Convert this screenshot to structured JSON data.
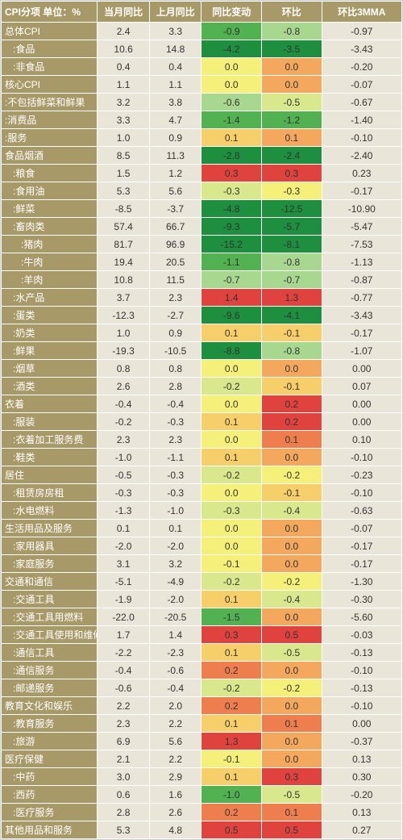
{
  "table": {
    "headers": {
      "cat": "CPI分项      单位：%",
      "c1": "当月同比",
      "c2": "上月同比",
      "c3": "同比变动",
      "c4": "环比",
      "c5": "环比3MMA"
    },
    "heat_palette": {
      "deep_green": "#1e8f3e",
      "green": "#52b151",
      "light_green": "#a8d88f",
      "yellow_green": "#d9e88c",
      "yellow": "#f5f07a",
      "orange_yellow": "#f7cf6a",
      "orange": "#f4a85d",
      "deep_orange": "#ee7e4e",
      "red": "#e0433e"
    },
    "rows": [
      {
        "label": "总体CPI",
        "indent": 0,
        "c1": "2.4",
        "c2": "3.3",
        "c3": "-0.9",
        "c3c": "green",
        "c4": "-0.8",
        "c4c": "light_green",
        "c5": "-0.97"
      },
      {
        "label": ":食品",
        "indent": 1,
        "c1": "10.6",
        "c2": "14.8",
        "c3": "-4.2",
        "c3c": "deep_green",
        "c4": "-3.5",
        "c4c": "deep_green",
        "c5": "-3.43"
      },
      {
        "label": ":非食品",
        "indent": 1,
        "c1": "0.4",
        "c2": "0.4",
        "c3": "0.0",
        "c3c": "yellow",
        "c4": "0.0",
        "c4c": "orange",
        "c5": "-0.20"
      },
      {
        "label": "核心CPI",
        "indent": 0,
        "c1": "1.1",
        "c2": "1.1",
        "c3": "0.0",
        "c3c": "yellow",
        "c4": "0.0",
        "c4c": "orange",
        "c5": "-0.07"
      },
      {
        "label": ":不包括鲜菜和鲜果",
        "indent": 0,
        "c1": "3.2",
        "c2": "3.8",
        "c3": "-0.6",
        "c3c": "light_green",
        "c4": "-0.5",
        "c4c": "yellow_green",
        "c5": "-0.67"
      },
      {
        "label": ":消费品",
        "indent": 0,
        "c1": "3.3",
        "c2": "4.7",
        "c3": "-1.4",
        "c3c": "green",
        "c4": "-1.2",
        "c4c": "green",
        "c5": "-1.40"
      },
      {
        "label": ":服务",
        "indent": 0,
        "c1": "1.0",
        "c2": "0.9",
        "c3": "0.1",
        "c3c": "orange_yellow",
        "c4": "0.1",
        "c4c": "orange",
        "c5": "-0.10"
      },
      {
        "label": "食品烟酒",
        "indent": 0,
        "c1": "8.5",
        "c2": "11.3",
        "c3": "-2.8",
        "c3c": "deep_green",
        "c4": "-2.4",
        "c4c": "deep_green",
        "c5": "-2.40"
      },
      {
        "label": ":粮食",
        "indent": 1,
        "c1": "1.5",
        "c2": "1.2",
        "c3": "0.3",
        "c3c": "red",
        "c4": "0.3",
        "c4c": "red",
        "c5": "0.23"
      },
      {
        "label": ":食用油",
        "indent": 1,
        "c1": "5.3",
        "c2": "5.6",
        "c3": "-0.3",
        "c3c": "yellow_green",
        "c4": "-0.3",
        "c4c": "yellow",
        "c5": "-0.17"
      },
      {
        "label": ":鲜菜",
        "indent": 1,
        "c1": "-8.5",
        "c2": "-3.7",
        "c3": "-4.8",
        "c3c": "deep_green",
        "c4": "-12.5",
        "c4c": "deep_green",
        "c5": "-10.90"
      },
      {
        "label": ":畜肉类",
        "indent": 1,
        "c1": "57.4",
        "c2": "66.7",
        "c3": "-9.3",
        "c3c": "deep_green",
        "c4": "-5.7",
        "c4c": "deep_green",
        "c5": "-5.47"
      },
      {
        "label": ":猪肉",
        "indent": 2,
        "c1": "81.7",
        "c2": "96.9",
        "c3": "-15.2",
        "c3c": "deep_green",
        "c4": "-8.1",
        "c4c": "deep_green",
        "c5": "-7.53"
      },
      {
        "label": ":牛肉",
        "indent": 2,
        "c1": "19.4",
        "c2": "20.5",
        "c3": "-1.1",
        "c3c": "green",
        "c4": "-0.8",
        "c4c": "light_green",
        "c5": "-1.13"
      },
      {
        "label": ":羊肉",
        "indent": 2,
        "c1": "10.8",
        "c2": "11.5",
        "c3": "-0.7",
        "c3c": "light_green",
        "c4": "-0.7",
        "c4c": "light_green",
        "c5": "-0.87"
      },
      {
        "label": ":水产品",
        "indent": 1,
        "c1": "3.7",
        "c2": "2.3",
        "c3": "1.4",
        "c3c": "red",
        "c4": "1.3",
        "c4c": "red",
        "c5": "-0.77"
      },
      {
        "label": ":蛋类",
        "indent": 1,
        "c1": "-12.3",
        "c2": "-2.7",
        "c3": "-9.6",
        "c3c": "deep_green",
        "c4": "-4.1",
        "c4c": "deep_green",
        "c5": "-3.43"
      },
      {
        "label": ":奶类",
        "indent": 1,
        "c1": "1.0",
        "c2": "0.9",
        "c3": "0.1",
        "c3c": "orange_yellow",
        "c4": "-0.1",
        "c4c": "orange_yellow",
        "c5": "-0.17"
      },
      {
        "label": ":鲜果",
        "indent": 1,
        "c1": "-19.3",
        "c2": "-10.5",
        "c3": "-8.8",
        "c3c": "deep_green",
        "c4": "-0.8",
        "c4c": "light_green",
        "c5": "-1.07"
      },
      {
        "label": ":烟草",
        "indent": 1,
        "c1": "0.8",
        "c2": "0.8",
        "c3": "0.0",
        "c3c": "yellow",
        "c4": "0.0",
        "c4c": "orange",
        "c5": "0.00"
      },
      {
        "label": ":酒类",
        "indent": 1,
        "c1": "2.6",
        "c2": "2.8",
        "c3": "-0.2",
        "c3c": "yellow_green",
        "c4": "-0.1",
        "c4c": "orange_yellow",
        "c5": "0.07"
      },
      {
        "label": "衣着",
        "indent": 0,
        "c1": "-0.4",
        "c2": "-0.4",
        "c3": "0.0",
        "c3c": "yellow",
        "c4": "0.2",
        "c4c": "red",
        "c5": "0.00"
      },
      {
        "label": ":服装",
        "indent": 1,
        "c1": "-0.2",
        "c2": "-0.3",
        "c3": "0.1",
        "c3c": "orange_yellow",
        "c4": "0.2",
        "c4c": "red",
        "c5": "0.00"
      },
      {
        "label": ":衣着加工服务费",
        "indent": 1,
        "c1": "2.3",
        "c2": "2.3",
        "c3": "0.0",
        "c3c": "yellow",
        "c4": "0.1",
        "c4c": "deep_orange",
        "c5": "0.10"
      },
      {
        "label": ":鞋类",
        "indent": 1,
        "c1": "-1.0",
        "c2": "-1.1",
        "c3": "0.1",
        "c3c": "orange_yellow",
        "c4": "0.0",
        "c4c": "orange",
        "c5": "-0.10"
      },
      {
        "label": "居住",
        "indent": 0,
        "c1": "-0.5",
        "c2": "-0.3",
        "c3": "-0.2",
        "c3c": "yellow_green",
        "c4": "-0.2",
        "c4c": "yellow",
        "c5": "-0.23"
      },
      {
        "label": ":租赁房房租",
        "indent": 1,
        "c1": "-0.3",
        "c2": "-0.3",
        "c3": "0.0",
        "c3c": "yellow",
        "c4": "-0.1",
        "c4c": "orange_yellow",
        "c5": "-0.10"
      },
      {
        "label": ":水电燃料",
        "indent": 1,
        "c1": "-1.3",
        "c2": "-1.0",
        "c3": "-0.3",
        "c3c": "yellow_green",
        "c4": "-0.4",
        "c4c": "yellow_green",
        "c5": "-0.63"
      },
      {
        "label": "生活用品及服务",
        "indent": 0,
        "c1": "0.1",
        "c2": "0.1",
        "c3": "0.0",
        "c3c": "yellow",
        "c4": "0.0",
        "c4c": "orange",
        "c5": "-0.07"
      },
      {
        "label": ":家用器具",
        "indent": 1,
        "c1": "-2.0",
        "c2": "-2.0",
        "c3": "0.0",
        "c3c": "yellow",
        "c4": "0.0",
        "c4c": "orange",
        "c5": "-0.17"
      },
      {
        "label": ":家庭服务",
        "indent": 1,
        "c1": "3.1",
        "c2": "3.2",
        "c3": "-0.1",
        "c3c": "yellow",
        "c4": "0.0",
        "c4c": "orange",
        "c5": "-0.17"
      },
      {
        "label": "交通和通信",
        "indent": 0,
        "c1": "-5.1",
        "c2": "-4.9",
        "c3": "-0.2",
        "c3c": "yellow_green",
        "c4": "-0.2",
        "c4c": "yellow",
        "c5": "-1.30"
      },
      {
        "label": ":交通工具",
        "indent": 1,
        "c1": "-1.9",
        "c2": "-2.0",
        "c3": "0.1",
        "c3c": "orange_yellow",
        "c4": "-0.4",
        "c4c": "yellow_green",
        "c5": "-0.30"
      },
      {
        "label": ":交通工具用燃料",
        "indent": 1,
        "c1": "-22.0",
        "c2": "-20.5",
        "c3": "-1.5",
        "c3c": "green",
        "c4": "0.0",
        "c4c": "orange",
        "c5": "-5.60"
      },
      {
        "label": ":交通工具使用和维修",
        "indent": 1,
        "c1": "1.7",
        "c2": "1.4",
        "c3": "0.3",
        "c3c": "red",
        "c4": "0.5",
        "c4c": "red",
        "c5": "-0.03"
      },
      {
        "label": ":通信工具",
        "indent": 1,
        "c1": "-2.2",
        "c2": "-2.3",
        "c3": "0.1",
        "c3c": "orange_yellow",
        "c4": "-0.5",
        "c4c": "yellow_green",
        "c5": "-0.13"
      },
      {
        "label": ":通信服务",
        "indent": 1,
        "c1": "-0.4",
        "c2": "-0.6",
        "c3": "0.2",
        "c3c": "deep_orange",
        "c4": "0.0",
        "c4c": "orange",
        "c5": "-0.10"
      },
      {
        "label": ":邮递服务",
        "indent": 1,
        "c1": "-0.6",
        "c2": "-0.4",
        "c3": "-0.2",
        "c3c": "yellow_green",
        "c4": "-0.2",
        "c4c": "yellow",
        "c5": "-0.13"
      },
      {
        "label": "教育文化和娱乐",
        "indent": 0,
        "c1": "2.2",
        "c2": "2.0",
        "c3": "0.2",
        "c3c": "deep_orange",
        "c4": "0.0",
        "c4c": "orange",
        "c5": "-0.10"
      },
      {
        "label": ":教育服务",
        "indent": 1,
        "c1": "2.3",
        "c2": "2.2",
        "c3": "0.1",
        "c3c": "orange_yellow",
        "c4": "0.1",
        "c4c": "deep_orange",
        "c5": "0.00"
      },
      {
        "label": ":旅游",
        "indent": 1,
        "c1": "6.9",
        "c2": "5.6",
        "c3": "1.3",
        "c3c": "red",
        "c4": "0.0",
        "c4c": "orange",
        "c5": "-0.37"
      },
      {
        "label": "医疗保健",
        "indent": 0,
        "c1": "2.1",
        "c2": "2.2",
        "c3": "-0.1",
        "c3c": "yellow",
        "c4": "0.0",
        "c4c": "orange",
        "c5": "0.13"
      },
      {
        "label": ":中药",
        "indent": 1,
        "c1": "3.0",
        "c2": "2.9",
        "c3": "0.1",
        "c3c": "orange_yellow",
        "c4": "0.3",
        "c4c": "red",
        "c5": "0.30"
      },
      {
        "label": ":西药",
        "indent": 1,
        "c1": "0.6",
        "c2": "1.6",
        "c3": "-1.0",
        "c3c": "green",
        "c4": "-0.5",
        "c4c": "yellow_green",
        "c5": "-0.20"
      },
      {
        "label": ":医疗服务",
        "indent": 1,
        "c1": "2.8",
        "c2": "2.6",
        "c3": "0.2",
        "c3c": "deep_orange",
        "c4": "0.1",
        "c4c": "deep_orange",
        "c5": "0.13"
      },
      {
        "label": "其他用品和服务",
        "indent": 0,
        "c1": "5.3",
        "c2": "4.8",
        "c3": "0.5",
        "c3c": "red",
        "c4": "0.5",
        "c4c": "red",
        "c5": "0.27"
      }
    ]
  }
}
